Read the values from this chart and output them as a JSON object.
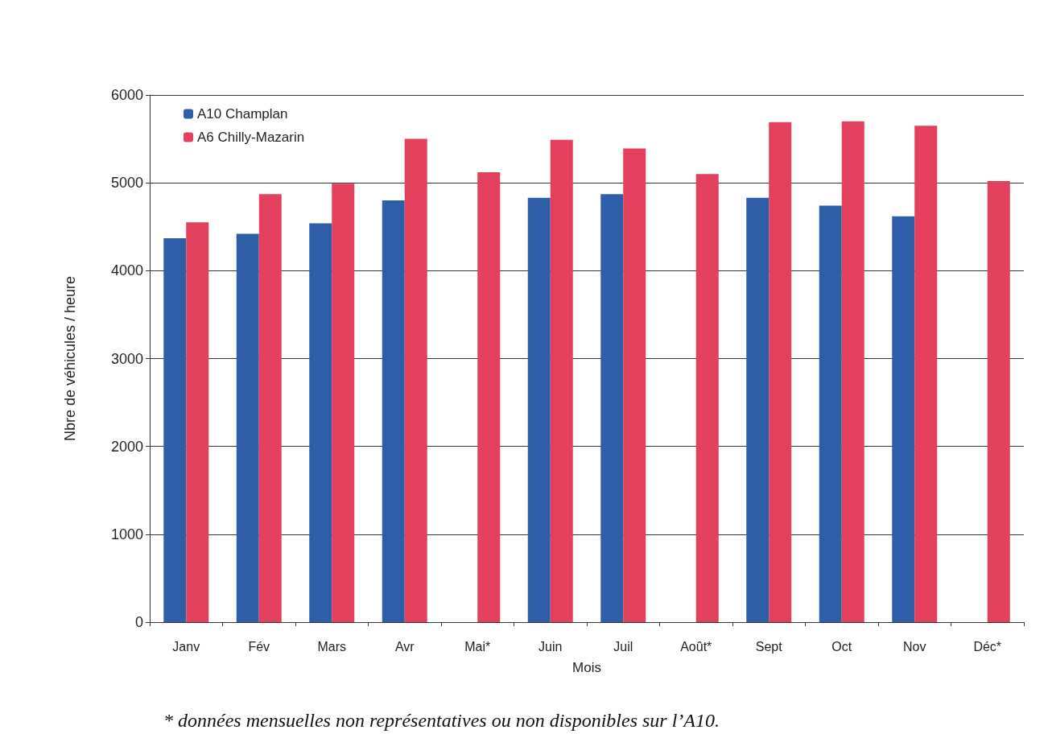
{
  "chart_data": {
    "type": "bar",
    "xlabel": "Mois",
    "ylabel": "Nbre de véhicules / heure",
    "categories": [
      "Janv",
      "Fév",
      "Mars",
      "Avr",
      "Mai*",
      "Juin",
      "Juil",
      "Août*",
      "Sept",
      "Oct",
      "Nov",
      "Déc*"
    ],
    "series": [
      {
        "name": "A10 Champlan",
        "color": "#2f5ea8",
        "values": [
          4370,
          4420,
          4540,
          4800,
          null,
          4830,
          4870,
          null,
          4830,
          4740,
          4620,
          null
        ]
      },
      {
        "name": "A6 Chilly-Mazarin",
        "color": "#e2405c",
        "values": [
          4550,
          4870,
          4990,
          5500,
          5120,
          5490,
          5390,
          5100,
          5690,
          5700,
          5650,
          5020
        ]
      }
    ],
    "ylim": [
      0,
      6000
    ],
    "yticks": [
      0,
      1000,
      2000,
      3000,
      4000,
      5000,
      6000
    ],
    "grid": "y",
    "legend": "top left",
    "annotations": [
      "* données mensuelles non représentatives ou non disponibles sur l’A10."
    ]
  }
}
